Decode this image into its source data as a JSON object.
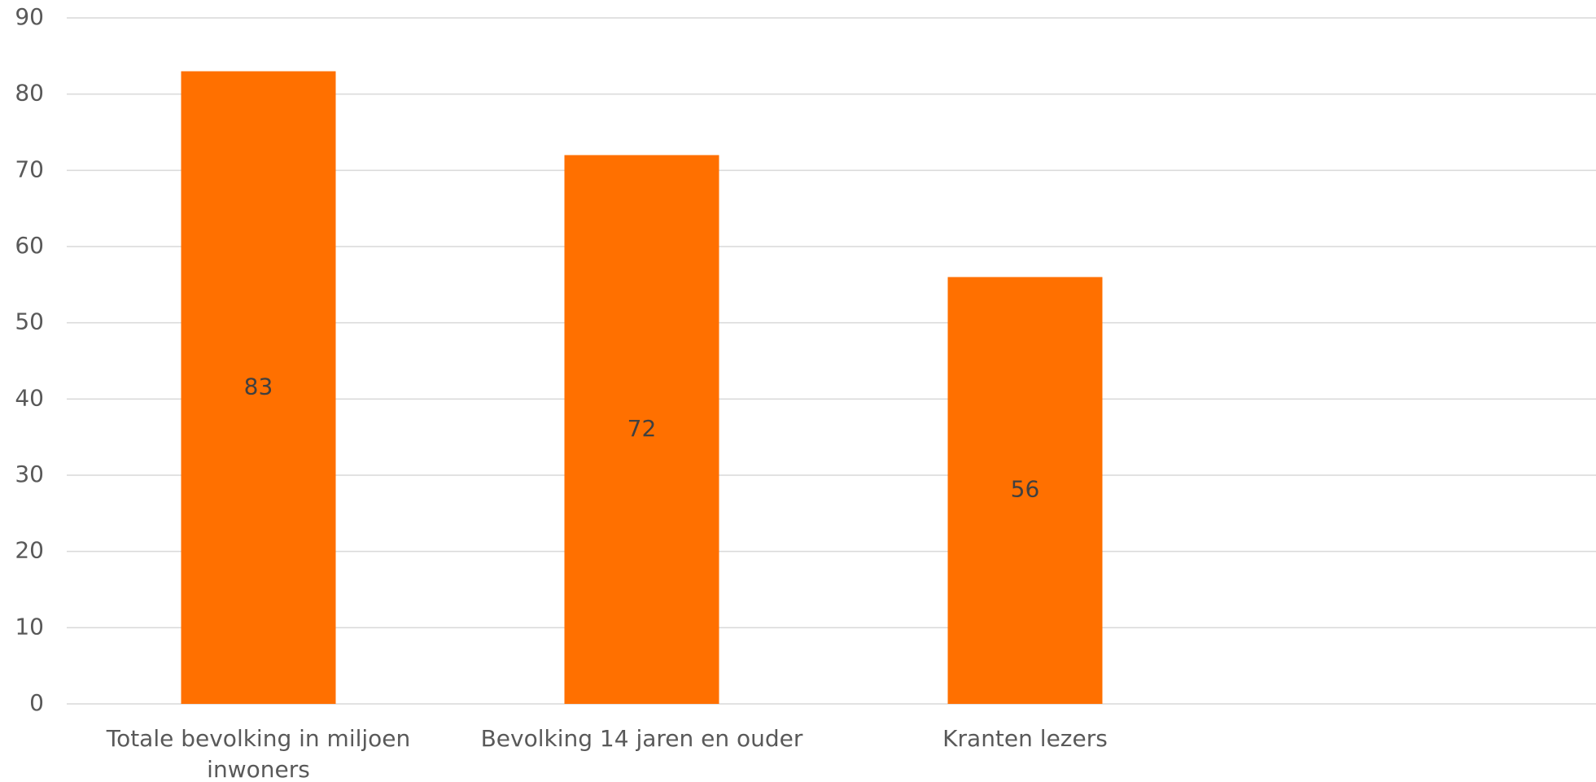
{
  "chart_data": {
    "type": "bar",
    "categories": [
      [
        "Totale bevolking in miljoen",
        "inwoners"
      ],
      [
        "Bevolking 14 jaren en ouder"
      ],
      [
        "Kranten lezers"
      ]
    ],
    "values": [
      83,
      72,
      56
    ],
    "data_labels": [
      "83",
      "72",
      "56"
    ],
    "ylim": [
      0,
      90
    ],
    "y_ticks": [
      0,
      10,
      20,
      30,
      40,
      50,
      60,
      70,
      80,
      90
    ],
    "grid": true,
    "bar_color": "#FF7000",
    "grid_color": "#D9D9D9",
    "label_color": "#595959"
  }
}
